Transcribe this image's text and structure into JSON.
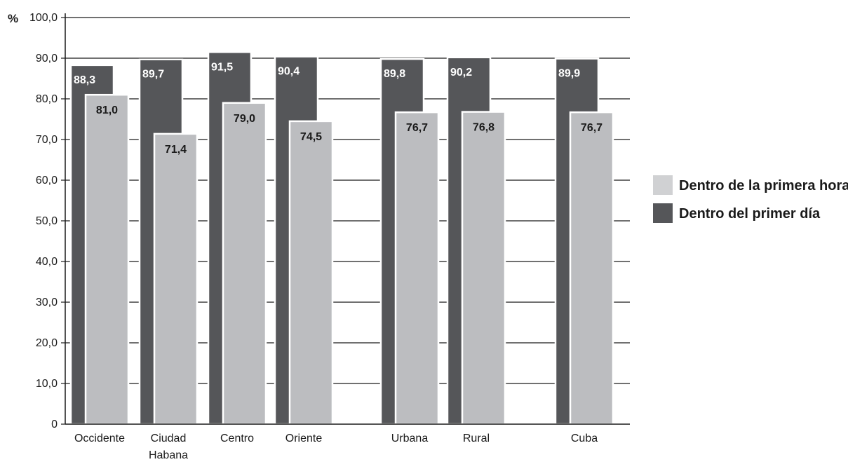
{
  "chart_data": {
    "type": "bar",
    "y_unit": "%",
    "ylim": [
      0,
      100
    ],
    "yticks": [
      "0",
      "10,0",
      "20,0",
      "30,0",
      "40,0",
      "50,0",
      "60,0",
      "70,0",
      "80,0",
      "90,0",
      "100,0"
    ],
    "grid": true,
    "legend_position": "right",
    "categories": [
      [
        "Occidente"
      ],
      [
        "Ciudad",
        "Habana"
      ],
      [
        "Centro"
      ],
      [
        "Oriente"
      ],
      [
        "Urbana"
      ],
      [
        "Rural"
      ],
      [
        "Cuba"
      ]
    ],
    "series": [
      {
        "name": "Dentro del primer día",
        "color": "#555659",
        "values": [
          88.3,
          89.7,
          91.5,
          90.4,
          89.8,
          90.2,
          89.9
        ],
        "labels": [
          "88,3",
          "89,7",
          "91,5",
          "90,4",
          "89,8",
          "90,2",
          "89,9"
        ]
      },
      {
        "name": "Dentro de la primera hora",
        "color": "#bcbdc0",
        "values": [
          81.0,
          71.4,
          79.0,
          74.5,
          76.7,
          76.8,
          76.7
        ],
        "labels": [
          "81,0",
          "71,4",
          "79,0",
          "74,5",
          "76,7",
          "76,8",
          "76,7"
        ]
      }
    ],
    "legend": [
      {
        "label": "Dentro de la primera hora",
        "color": "#d0d1d3"
      },
      {
        "label": "Dentro del primer día",
        "color": "#555659"
      }
    ]
  }
}
